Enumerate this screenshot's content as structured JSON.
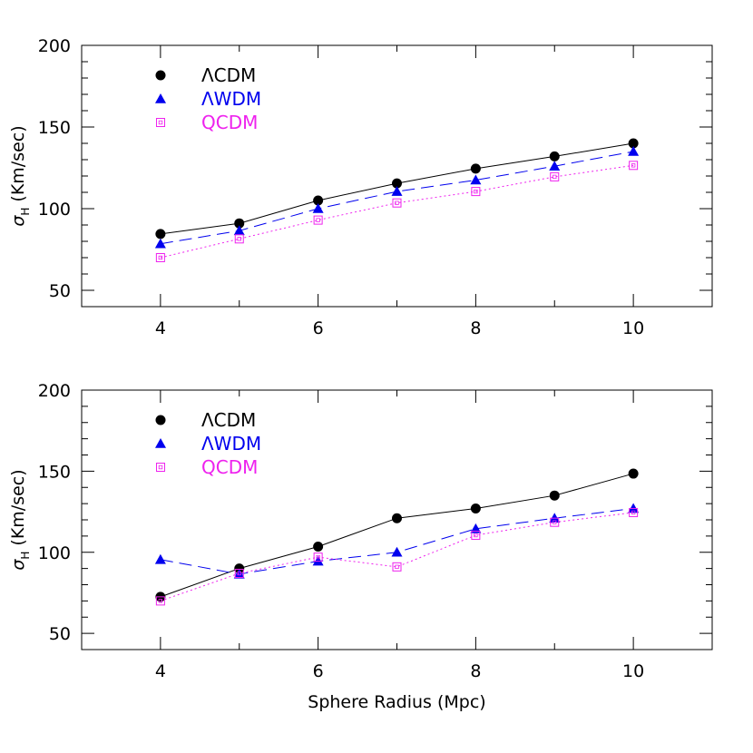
{
  "colors": {
    "axes": "#000000",
    "lcdm": "#000000",
    "lwdm": "#0000ee",
    "qcdm": "#ee22ee"
  },
  "chart_data": [
    {
      "type": "line",
      "ylabel_main": "σ",
      "ylabel_sub": "H",
      "ylabel_unit": "(Km/sec)",
      "xlabel": "",
      "xlim": [
        3,
        11
      ],
      "ylim": [
        40,
        200
      ],
      "xticks": [
        4,
        5,
        6,
        7,
        8,
        9,
        10
      ],
      "xtick_labels": [
        "4",
        "6",
        "8",
        "10"
      ],
      "xtick_label_values": [
        4,
        6,
        8,
        10
      ],
      "ytick_labels": [
        "50",
        "100",
        "150",
        "200"
      ],
      "ytick_label_values": [
        50,
        100,
        150,
        200
      ],
      "legend_position": "top-left",
      "x": [
        4,
        5,
        6,
        7,
        8,
        9,
        10
      ],
      "series": [
        {
          "name": "ΛCDM",
          "marker": "circle",
          "line": "solid",
          "color": "#000000",
          "values": [
            84.5,
            91,
            105,
            115.5,
            124.5,
            132,
            140
          ]
        },
        {
          "name": "ΛWDM",
          "marker": "triangle",
          "line": "dashed",
          "color": "#0000ee",
          "values": [
            78.5,
            86.5,
            100,
            110.5,
            117.5,
            126,
            135
          ]
        },
        {
          "name": "QCDM",
          "marker": "square",
          "line": "dotted",
          "color": "#ee22ee",
          "values": [
            70,
            81.5,
            93,
            103.5,
            110.5,
            119.5,
            126.5
          ]
        }
      ]
    },
    {
      "type": "line",
      "ylabel_main": "σ",
      "ylabel_sub": "H",
      "ylabel_unit": "(Km/sec)",
      "xlabel": "Sphere Radius (Mpc)",
      "xlim": [
        3,
        11
      ],
      "ylim": [
        40,
        200
      ],
      "xticks": [
        4,
        5,
        6,
        7,
        8,
        9,
        10
      ],
      "xtick_labels": [
        "4",
        "6",
        "8",
        "10"
      ],
      "xtick_label_values": [
        4,
        6,
        8,
        10
      ],
      "ytick_labels": [
        "50",
        "100",
        "150",
        "200"
      ],
      "ytick_label_values": [
        50,
        100,
        150,
        200
      ],
      "legend_position": "top-left",
      "x": [
        4,
        5,
        6,
        7,
        8,
        9,
        10
      ],
      "series": [
        {
          "name": "ΛCDM",
          "marker": "circle",
          "line": "solid",
          "color": "#000000",
          "values": [
            72.5,
            90,
            103.5,
            121,
            127,
            135,
            148.5
          ]
        },
        {
          "name": "ΛWDM",
          "marker": "triangle",
          "line": "dashed",
          "color": "#0000ee",
          "values": [
            95.5,
            86.5,
            94.5,
            100,
            114.5,
            121,
            127
          ]
        },
        {
          "name": "QCDM",
          "marker": "square",
          "line": "dotted",
          "color": "#ee22ee",
          "values": [
            70,
            87,
            97,
            91,
            110.5,
            118.5,
            124.5
          ]
        }
      ]
    }
  ]
}
